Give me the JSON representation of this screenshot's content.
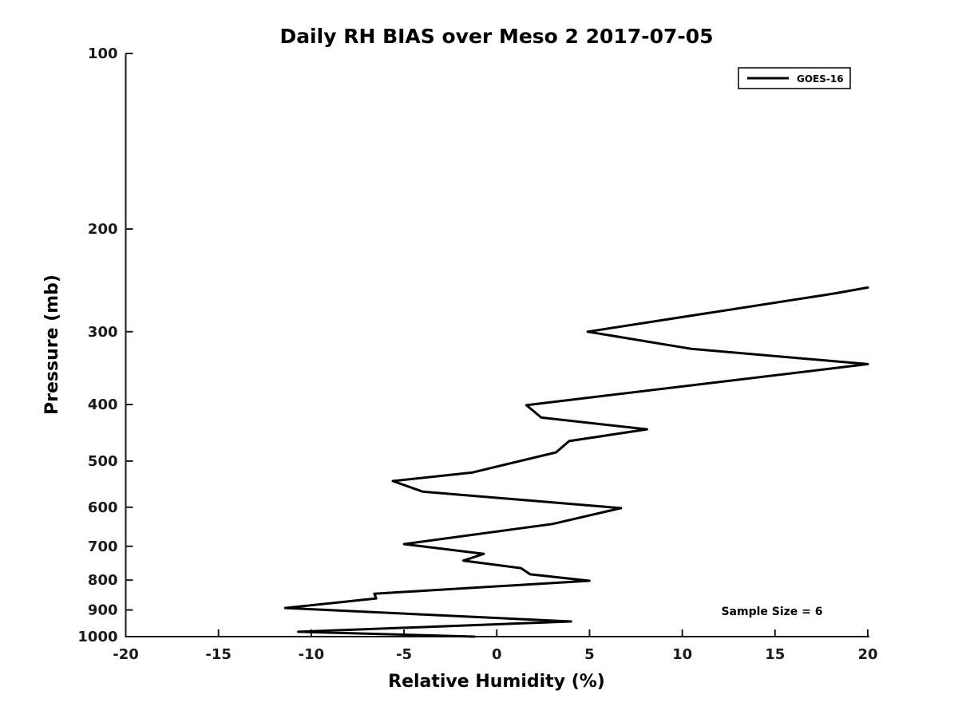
{
  "chart_data": {
    "type": "line",
    "title": "Daily RH BIAS over Meso 2 2017-07-05",
    "xlabel": "Relative Humidity (%)",
    "ylabel": "Pressure (mb)",
    "annotation": "Sample Size = 6",
    "xlim": [
      -20,
      20
    ],
    "x_ticks": [
      -20,
      -15,
      -10,
      -5,
      0,
      5,
      10,
      15,
      20
    ],
    "ylim": [
      100,
      1000
    ],
    "y_ticks": [
      100,
      200,
      300,
      400,
      500,
      600,
      700,
      800,
      900,
      1000
    ],
    "y_scale": "log",
    "y_inverted": true,
    "grid": false,
    "legend_position": "top-right",
    "axis_color": "#1a1a1a",
    "line_color": "#000000",
    "line_width": 3,
    "series": [
      {
        "name": "GOES-16",
        "points": [
          [
            20.0,
            252
          ],
          [
            18.2,
            258
          ],
          [
            4.9,
            300
          ],
          [
            10.5,
            321
          ],
          [
            20.0,
            341
          ],
          [
            1.6,
            401
          ],
          [
            2.4,
            421
          ],
          [
            8.1,
            441
          ],
          [
            3.9,
            462
          ],
          [
            3.2,
            483
          ],
          [
            -1.3,
            523
          ],
          [
            -5.6,
            541
          ],
          [
            -4.0,
            564
          ],
          [
            6.7,
            602
          ],
          [
            3.0,
            641
          ],
          [
            -5.0,
            694
          ],
          [
            -0.7,
            721
          ],
          [
            -1.8,
            741
          ],
          [
            1.3,
            763
          ],
          [
            1.8,
            782
          ],
          [
            5.0,
            802
          ],
          [
            -6.6,
            844
          ],
          [
            -6.5,
            860
          ],
          [
            -11.4,
            893
          ],
          [
            4.0,
            942
          ],
          [
            -10.7,
            981
          ],
          [
            -1.2,
            1000
          ]
        ]
      }
    ]
  }
}
